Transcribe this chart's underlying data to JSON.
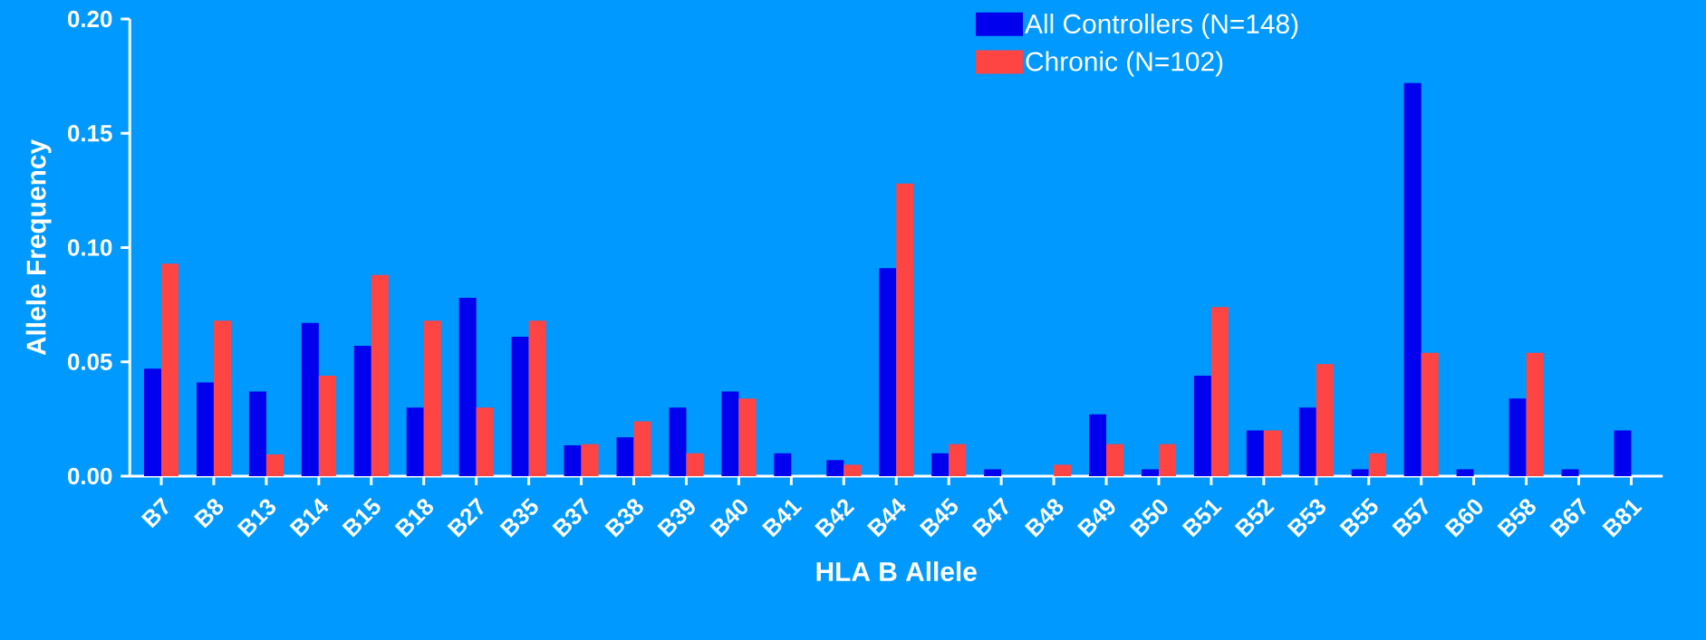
{
  "chart_data": {
    "type": "bar",
    "xlabel": "HLA B Allele",
    "ylabel": "Allele Frequency",
    "categories": [
      "B7",
      "B8",
      "B13",
      "B14",
      "B15",
      "B18",
      "B27",
      "B35",
      "B37",
      "B38",
      "B39",
      "B40",
      "B41",
      "B42",
      "B44",
      "B45",
      "B47",
      "B48",
      "B49",
      "B50",
      "B51",
      "B52",
      "B53",
      "B55",
      "B57",
      "B60",
      "B58",
      "B67",
      "B81"
    ],
    "series": [
      {
        "name": "All Controllers (N=148)",
        "color": "#0000ee",
        "values": [
          0.047,
          0.041,
          0.037,
          0.067,
          0.057,
          0.03,
          0.078,
          0.061,
          0.0135,
          0.017,
          0.03,
          0.037,
          0.01,
          0.007,
          0.091,
          0.01,
          0.003,
          null,
          0.027,
          0.003,
          0.044,
          0.02,
          0.03,
          0.003,
          0.172,
          0.003,
          0.034,
          0.003,
          0.02
        ]
      },
      {
        "name": "Chronic (N=102)",
        "color": "#ff4444",
        "values": [
          0.093,
          0.068,
          0.0095,
          0.044,
          0.088,
          0.068,
          0.03,
          0.068,
          0.014,
          0.024,
          0.01,
          0.034,
          null,
          0.005,
          0.128,
          0.014,
          null,
          0.005,
          0.014,
          0.014,
          0.074,
          0.02,
          0.049,
          0.01,
          0.054,
          null,
          0.054,
          null,
          null
        ]
      }
    ],
    "ylim": [
      0,
      0.2
    ],
    "yticks": [
      {
        "value": 0,
        "label": "0.00"
      },
      {
        "value": 0.05,
        "label": "0.05"
      },
      {
        "value": 0.1,
        "label": "0.10"
      },
      {
        "value": 0.15,
        "label": "0.15"
      },
      {
        "value": 0.2,
        "label": "0.20"
      }
    ],
    "legend": "top right"
  }
}
